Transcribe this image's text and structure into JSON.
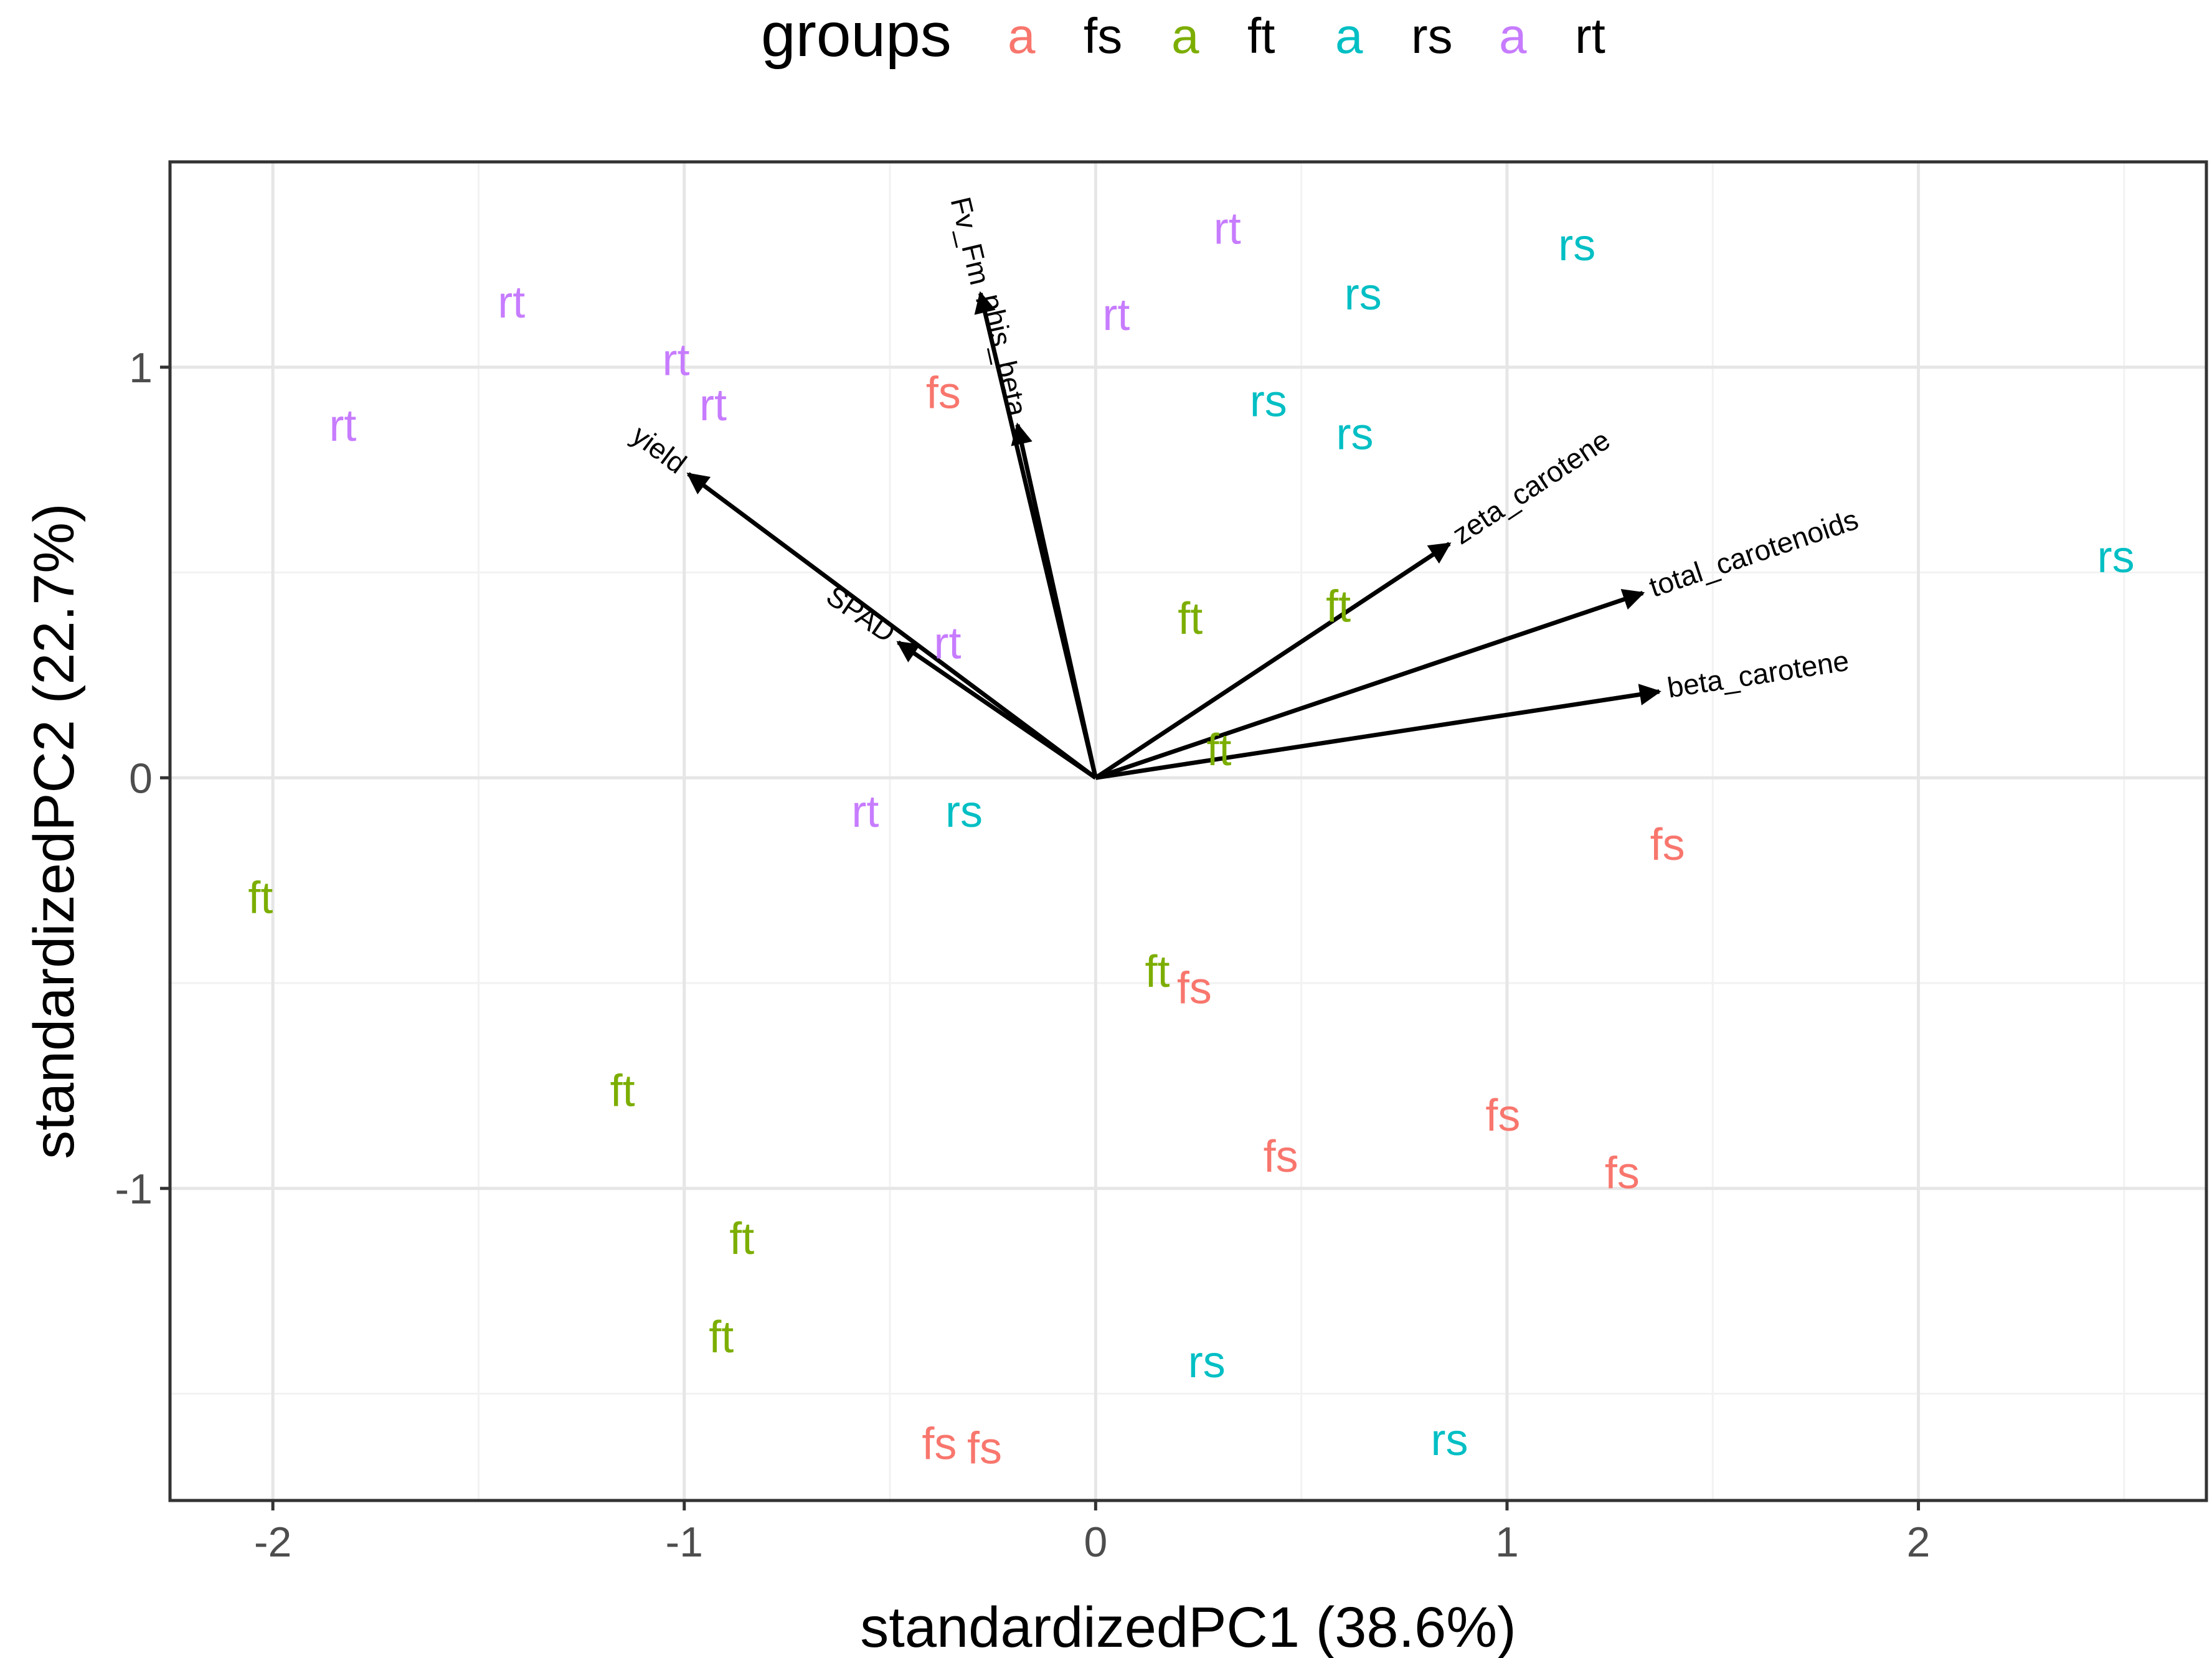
{
  "chart_data": {
    "type": "scatter",
    "subtype": "pca-biplot",
    "xlabel": "standardizedPC1 (38.6%)",
    "ylabel": "standardizedPC2 (22.7%)",
    "xlim": [
      -2.25,
      2.7
    ],
    "ylim": [
      -1.76,
      1.5
    ],
    "x_ticks": [
      -2,
      -1,
      0,
      1,
      2
    ],
    "x_tick_labels": [
      "-2",
      "-1",
      "0",
      "1",
      "2"
    ],
    "y_ticks": [
      -1,
      0,
      1
    ],
    "y_tick_labels": [
      "-1",
      "0",
      "1"
    ],
    "grid": true,
    "legend": {
      "title": "groups",
      "placement": "top",
      "key_glyph": "a",
      "entries": [
        {
          "name": "fs",
          "color": "#F8766D"
        },
        {
          "name": "ft",
          "color": "#7CAE00"
        },
        {
          "name": "rs",
          "color": "#00BFC4"
        },
        {
          "name": "rt",
          "color": "#C77CFF"
        }
      ]
    },
    "points": [
      {
        "group": "rt",
        "x": 0.32,
        "y": 1.34
      },
      {
        "group": "rt",
        "x": -1.42,
        "y": 1.16
      },
      {
        "group": "rt",
        "x": 0.05,
        "y": 1.13
      },
      {
        "group": "rt",
        "x": -1.02,
        "y": 1.02
      },
      {
        "group": "rt",
        "x": -0.93,
        "y": 0.91
      },
      {
        "group": "rt",
        "x": -1.83,
        "y": 0.86
      },
      {
        "group": "rt",
        "x": -0.36,
        "y": 0.33
      },
      {
        "group": "rt",
        "x": -0.56,
        "y": -0.08
      },
      {
        "group": "rs",
        "x": 1.17,
        "y": 1.3
      },
      {
        "group": "rs",
        "x": 0.65,
        "y": 1.18
      },
      {
        "group": "rs",
        "x": 0.42,
        "y": 0.92
      },
      {
        "group": "rs",
        "x": 0.63,
        "y": 0.84
      },
      {
        "group": "rs",
        "x": 2.48,
        "y": 0.54
      },
      {
        "group": "rs",
        "x": -0.32,
        "y": -0.08
      },
      {
        "group": "rs",
        "x": 0.27,
        "y": -1.42
      },
      {
        "group": "rs",
        "x": 0.86,
        "y": -1.61
      },
      {
        "group": "fs",
        "x": -0.37,
        "y": 0.94
      },
      {
        "group": "fs",
        "x": 1.39,
        "y": -0.16
      },
      {
        "group": "fs",
        "x": 0.24,
        "y": -0.51
      },
      {
        "group": "fs",
        "x": 0.99,
        "y": -0.82
      },
      {
        "group": "fs",
        "x": 0.45,
        "y": -0.92
      },
      {
        "group": "fs",
        "x": 1.28,
        "y": -0.96
      },
      {
        "group": "fs",
        "x": -0.38,
        "y": -1.62
      },
      {
        "group": "fs",
        "x": -0.27,
        "y": -1.63
      },
      {
        "group": "ft",
        "x": 0.23,
        "y": 0.39
      },
      {
        "group": "ft",
        "x": 0.59,
        "y": 0.42
      },
      {
        "group": "ft",
        "x": 0.3,
        "y": 0.07
      },
      {
        "group": "ft",
        "x": -2.03,
        "y": -0.29
      },
      {
        "group": "ft",
        "x": 0.15,
        "y": -0.47
      },
      {
        "group": "ft",
        "x": -1.15,
        "y": -0.76
      },
      {
        "group": "ft",
        "x": -0.86,
        "y": -1.12
      },
      {
        "group": "ft",
        "x": -0.91,
        "y": -1.36
      }
    ],
    "loadings": [
      {
        "name": "yield",
        "x": -0.99,
        "y": 0.74
      },
      {
        "name": "SPAD",
        "x": -0.48,
        "y": 0.33
      },
      {
        "name": "Fv_Fm",
        "x": -0.28,
        "y": 1.18
      },
      {
        "name": "phis_beta",
        "x": -0.19,
        "y": 0.86
      },
      {
        "name": "zeta_carotene",
        "x": 0.86,
        "y": 0.57
      },
      {
        "name": "total_carotenoids",
        "x": 1.33,
        "y": 0.45
      },
      {
        "name": "beta_carotene",
        "x": 1.37,
        "y": 0.21
      }
    ]
  }
}
